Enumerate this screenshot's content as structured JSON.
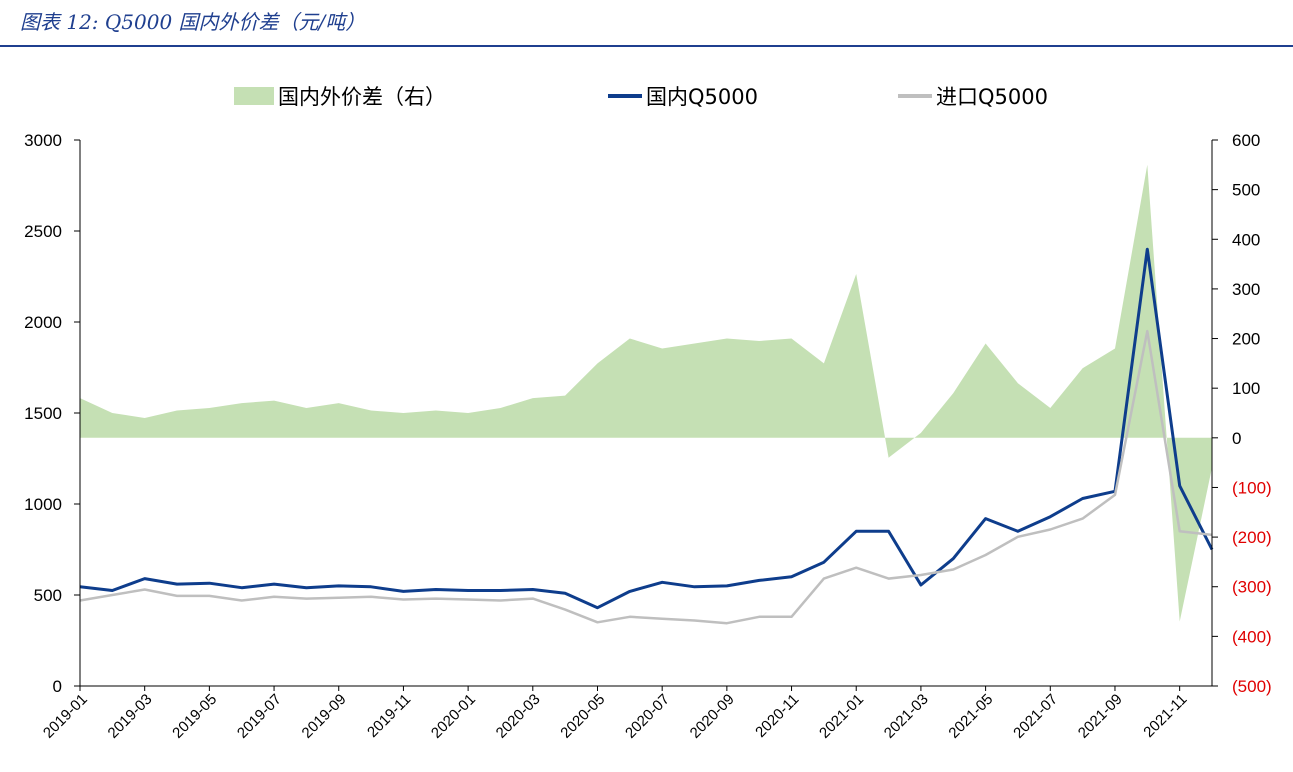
{
  "caption": "图表 12: Q5000 国内外价差（元/吨）",
  "chart_data": {
    "type": "line",
    "title": "",
    "legend_placement": "top-center",
    "legend": [
      {
        "name": "国内外价差（右）",
        "kind": "area",
        "color": "#c5e0b4"
      },
      {
        "name": "国内Q5000",
        "kind": "line",
        "color": "#0e3d8c"
      },
      {
        "name": "进口Q5000",
        "kind": "line",
        "color": "#bfbfbf"
      }
    ],
    "left_axis": {
      "min": 0,
      "max": 3000,
      "ticks": [
        "0",
        "500",
        "1000",
        "1500",
        "2000",
        "2500",
        "3000"
      ]
    },
    "right_axis": {
      "min": -500,
      "max": 600,
      "ticks": [
        "(500)",
        "(400)",
        "(300)",
        "(200)",
        "(100)",
        "0",
        "100",
        "200",
        "300",
        "400",
        "500",
        "600"
      ],
      "negative_color": "#e00000"
    },
    "x_ticks": [
      "2019-01",
      "2019-03",
      "2019-05",
      "2019-07",
      "2019-09",
      "2019-11",
      "2020-01",
      "2020-03",
      "2020-05",
      "2020-07",
      "2020-09",
      "2020-11",
      "2021-01",
      "2021-03",
      "2021-05",
      "2021-07",
      "2021-09",
      "2021-11"
    ],
    "x_range": [
      "2019-01",
      "2021-12"
    ],
    "series": [
      {
        "name": "国内Q5000",
        "axis": "left",
        "color": "#0e3d8c",
        "x": [
          "2019-01",
          "2019-02",
          "2019-03",
          "2019-04",
          "2019-05",
          "2019-06",
          "2019-07",
          "2019-08",
          "2019-09",
          "2019-10",
          "2019-11",
          "2019-12",
          "2020-01",
          "2020-02",
          "2020-03",
          "2020-04",
          "2020-05",
          "2020-06",
          "2020-07",
          "2020-08",
          "2020-09",
          "2020-10",
          "2020-11",
          "2020-12",
          "2021-01",
          "2021-02",
          "2021-03",
          "2021-04",
          "2021-05",
          "2021-06",
          "2021-07",
          "2021-08",
          "2021-09",
          "2021-10",
          "2021-11",
          "2021-12"
        ],
        "values": [
          545,
          525,
          590,
          560,
          565,
          540,
          560,
          540,
          550,
          545,
          520,
          530,
          525,
          525,
          530,
          510,
          430,
          520,
          570,
          545,
          550,
          580,
          600,
          680,
          850,
          850,
          555,
          700,
          920,
          850,
          930,
          1030,
          1070,
          2400,
          1100,
          750
        ]
      },
      {
        "name": "进口Q5000",
        "axis": "left",
        "color": "#bfbfbf",
        "x": [
          "2019-01",
          "2019-02",
          "2019-03",
          "2019-04",
          "2019-05",
          "2019-06",
          "2019-07",
          "2019-08",
          "2019-09",
          "2019-10",
          "2019-11",
          "2019-12",
          "2020-01",
          "2020-02",
          "2020-03",
          "2020-04",
          "2020-05",
          "2020-06",
          "2020-07",
          "2020-08",
          "2020-09",
          "2020-10",
          "2020-11",
          "2020-12",
          "2021-01",
          "2021-02",
          "2021-03",
          "2021-04",
          "2021-05",
          "2021-06",
          "2021-07",
          "2021-08",
          "2021-09",
          "2021-10",
          "2021-11",
          "2021-12"
        ],
        "values": [
          470,
          500,
          530,
          495,
          495,
          470,
          490,
          480,
          485,
          490,
          475,
          480,
          475,
          470,
          480,
          420,
          350,
          380,
          370,
          360,
          345,
          380,
          380,
          590,
          650,
          590,
          610,
          640,
          720,
          820,
          860,
          920,
          1050,
          1950,
          850,
          830
        ]
      },
      {
        "name": "国内外价差（右）",
        "axis": "right",
        "type": "area",
        "color": "#c5e0b4",
        "x": [
          "2019-01",
          "2019-02",
          "2019-03",
          "2019-04",
          "2019-05",
          "2019-06",
          "2019-07",
          "2019-08",
          "2019-09",
          "2019-10",
          "2019-11",
          "2019-12",
          "2020-01",
          "2020-02",
          "2020-03",
          "2020-04",
          "2020-05",
          "2020-06",
          "2020-07",
          "2020-08",
          "2020-09",
          "2020-10",
          "2020-11",
          "2020-12",
          "2021-01",
          "2021-02",
          "2021-03",
          "2021-04",
          "2021-05",
          "2021-06",
          "2021-07",
          "2021-08",
          "2021-09",
          "2021-10",
          "2021-11",
          "2021-12"
        ],
        "values": [
          80,
          50,
          40,
          55,
          60,
          70,
          75,
          60,
          70,
          55,
          50,
          55,
          50,
          60,
          80,
          85,
          150,
          200,
          180,
          190,
          200,
          195,
          200,
          150,
          330,
          -40,
          10,
          90,
          190,
          110,
          60,
          140,
          180,
          550,
          -370,
          -60
        ]
      }
    ]
  }
}
